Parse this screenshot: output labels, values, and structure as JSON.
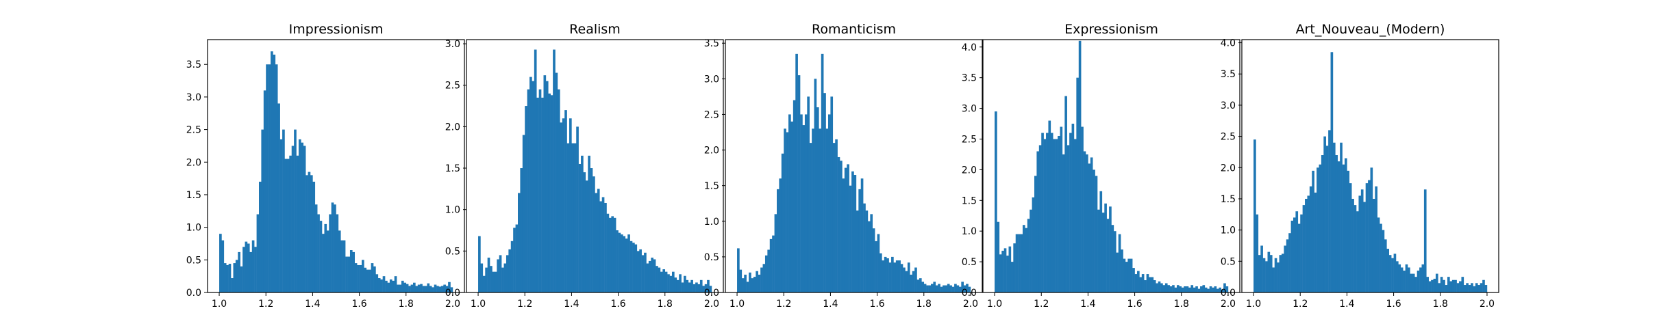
{
  "chart_data": [
    {
      "type": "histogram",
      "title": "Impressionism",
      "bin_range": [
        1.0,
        2.0
      ],
      "bin_count": 100,
      "xlim": [
        0.95,
        2.05
      ],
      "ylim": [
        0,
        3.88
      ],
      "xticks": [
        "1.0",
        "1.2",
        "1.4",
        "1.6",
        "1.8",
        "2.0"
      ],
      "yticks": [
        "0.0",
        "0.5",
        "1.0",
        "1.5",
        "2.0",
        "2.5",
        "3.0",
        "3.5"
      ],
      "bar_color": "#1f77b4",
      "values": [
        0.9,
        0.8,
        0.45,
        0.42,
        0.44,
        0.22,
        0.45,
        0.5,
        0.62,
        0.4,
        0.7,
        0.78,
        0.75,
        0.62,
        0.8,
        0.7,
        1.2,
        1.7,
        2.5,
        3.1,
        3.5,
        3.5,
        3.7,
        3.65,
        3.5,
        2.9,
        2.35,
        2.5,
        2.05,
        2.05,
        2.1,
        2.25,
        2.5,
        2.1,
        2.35,
        2.3,
        2.25,
        1.8,
        1.85,
        1.8,
        1.7,
        1.35,
        1.2,
        1.1,
        0.9,
        1.05,
        0.95,
        1.2,
        1.38,
        1.35,
        1.2,
        0.95,
        0.8,
        0.8,
        0.55,
        0.55,
        0.65,
        0.62,
        0.45,
        0.42,
        0.42,
        0.5,
        0.38,
        0.35,
        0.35,
        0.45,
        0.4,
        0.28,
        0.22,
        0.2,
        0.25,
        0.18,
        0.15,
        0.2,
        0.18,
        0.25,
        0.12,
        0.12,
        0.18,
        0.15,
        0.13,
        0.1,
        0.12,
        0.15,
        0.1,
        0.12,
        0.13,
        0.1,
        0.1,
        0.14,
        0.1,
        0.08,
        0.12,
        0.1,
        0.09,
        0.1,
        0.12,
        0.1,
        0.16,
        0.08
      ]
    },
    {
      "type": "histogram",
      "title": "Realism",
      "bin_range": [
        1.0,
        2.0
      ],
      "bin_count": 100,
      "xlim": [
        0.95,
        2.05
      ],
      "ylim": [
        0,
        3.05
      ],
      "xticks": [
        "1.0",
        "1.2",
        "1.4",
        "1.6",
        "1.8",
        "2.0"
      ],
      "yticks": [
        "0.0",
        "0.5",
        "1.0",
        "1.5",
        "2.0",
        "2.5",
        "3.0"
      ],
      "bar_color": "#1f77b4",
      "values": [
        0.68,
        0.35,
        0.2,
        0.3,
        0.42,
        0.32,
        0.25,
        0.25,
        0.4,
        0.45,
        0.3,
        0.35,
        0.45,
        0.52,
        0.62,
        0.78,
        0.82,
        1.2,
        1.5,
        1.9,
        2.25,
        2.45,
        2.6,
        2.55,
        2.93,
        2.35,
        2.45,
        2.35,
        2.62,
        2.55,
        2.4,
        2.38,
        2.93,
        2.65,
        2.45,
        2.05,
        2.1,
        2.2,
        1.8,
        2.1,
        1.8,
        1.8,
        2.0,
        1.55,
        1.65,
        1.45,
        1.35,
        1.65,
        1.5,
        1.4,
        1.2,
        1.25,
        1.1,
        1.15,
        1.08,
        0.95,
        0.9,
        0.92,
        0.9,
        0.75,
        0.72,
        0.7,
        0.68,
        0.65,
        0.7,
        0.62,
        0.6,
        0.58,
        0.5,
        0.52,
        0.45,
        0.48,
        0.35,
        0.38,
        0.42,
        0.4,
        0.32,
        0.3,
        0.25,
        0.28,
        0.25,
        0.22,
        0.2,
        0.25,
        0.18,
        0.15,
        0.22,
        0.12,
        0.2,
        0.15,
        0.12,
        0.15,
        0.1,
        0.12,
        0.1,
        0.15,
        0.08,
        0.1,
        0.15,
        0.08
      ]
    },
    {
      "type": "histogram",
      "title": "Romanticism",
      "bin_range": [
        1.0,
        2.0
      ],
      "bin_count": 100,
      "xlim": [
        0.95,
        2.05
      ],
      "ylim": [
        0,
        3.55
      ],
      "xticks": [
        "1.0",
        "1.2",
        "1.4",
        "1.6",
        "1.8",
        "2.0"
      ],
      "yticks": [
        "0.0",
        "0.5",
        "1.0",
        "1.5",
        "2.0",
        "2.5",
        "3.0",
        "3.5"
      ],
      "bar_color": "#1f77b4",
      "values": [
        0.62,
        0.32,
        0.2,
        0.25,
        0.15,
        0.28,
        0.2,
        0.22,
        0.3,
        0.25,
        0.35,
        0.4,
        0.52,
        0.6,
        0.75,
        0.8,
        1.1,
        1.45,
        1.6,
        1.95,
        2.3,
        2.25,
        2.5,
        2.4,
        2.7,
        3.35,
        3.05,
        2.5,
        2.35,
        2.5,
        2.75,
        2.1,
        2.3,
        3.0,
        2.6,
        2.3,
        3.35,
        2.8,
        2.3,
        2.5,
        2.75,
        2.1,
        2.15,
        1.9,
        1.85,
        1.6,
        1.75,
        1.8,
        1.5,
        1.7,
        1.65,
        1.15,
        1.45,
        1.6,
        1.25,
        1.15,
        1.0,
        1.1,
        0.9,
        0.72,
        0.82,
        0.55,
        0.45,
        0.5,
        0.48,
        0.42,
        0.5,
        0.42,
        0.45,
        0.45,
        0.4,
        0.35,
        0.3,
        0.42,
        0.25,
        0.3,
        0.35,
        0.18,
        0.2,
        0.15,
        0.12,
        0.1,
        0.1,
        0.12,
        0.15,
        0.1,
        0.12,
        0.08,
        0.1,
        0.1,
        0.12,
        0.1,
        0.08,
        0.12,
        0.1,
        0.08,
        0.15,
        0.1,
        0.12,
        0.08
      ]
    },
    {
      "type": "histogram",
      "title": "Expressionism",
      "bin_range": [
        1.0,
        2.0
      ],
      "bin_count": 100,
      "xlim": [
        0.95,
        2.05
      ],
      "ylim": [
        0,
        4.12
      ],
      "xticks": [
        "1.0",
        "1.2",
        "1.4",
        "1.6",
        "1.8",
        "2.0"
      ],
      "yticks": [
        "0.0",
        "0.5",
        "1.0",
        "1.5",
        "2.0",
        "2.5",
        "3.0",
        "3.5",
        "4.0"
      ],
      "bar_color": "#1f77b4",
      "values": [
        2.95,
        1.15,
        0.62,
        0.68,
        0.72,
        0.6,
        0.75,
        0.5,
        0.8,
        0.95,
        0.95,
        0.95,
        1.1,
        1.05,
        1.2,
        1.35,
        1.55,
        1.9,
        2.3,
        2.4,
        2.6,
        2.5,
        2.6,
        2.8,
        2.6,
        2.5,
        2.5,
        2.55,
        2.7,
        2.25,
        3.2,
        2.4,
        2.6,
        2.75,
        2.5,
        3.5,
        4.1,
        2.7,
        2.3,
        2.25,
        2.1,
        2.2,
        2.0,
        1.9,
        1.35,
        1.65,
        1.3,
        1.45,
        1.2,
        1.4,
        1.1,
        1.0,
        0.65,
        0.95,
        0.7,
        0.55,
        0.5,
        0.55,
        0.55,
        0.4,
        0.3,
        0.35,
        0.25,
        0.3,
        0.2,
        0.3,
        0.25,
        0.25,
        0.2,
        0.15,
        0.18,
        0.15,
        0.12,
        0.15,
        0.12,
        0.1,
        0.12,
        0.08,
        0.12,
        0.1,
        0.08,
        0.1,
        0.1,
        0.08,
        0.12,
        0.08,
        0.1,
        0.06,
        0.1,
        0.12,
        0.08,
        0.06,
        0.1,
        0.08,
        0.1,
        0.06,
        0.08,
        0.05,
        0.15,
        0.1
      ]
    },
    {
      "type": "histogram",
      "title": "Art_Nouveau_(Modern)",
      "bin_range": [
        1.0,
        2.0
      ],
      "bin_count": 100,
      "xlim": [
        0.95,
        2.05
      ],
      "ylim": [
        0,
        4.05
      ],
      "xticks": [
        "1.0",
        "1.2",
        "1.4",
        "1.6",
        "1.8",
        "2.0"
      ],
      "yticks": [
        "0.0",
        "0.5",
        "1.0",
        "1.5",
        "2.0",
        "2.5",
        "3.0",
        "3.5",
        "4.0"
      ],
      "bar_color": "#1f77b4",
      "values": [
        2.45,
        1.25,
        0.6,
        0.75,
        0.55,
        0.5,
        0.65,
        0.6,
        0.4,
        0.55,
        0.48,
        0.6,
        0.62,
        0.75,
        0.85,
        0.95,
        1.15,
        1.2,
        1.3,
        1.1,
        1.25,
        1.4,
        1.5,
        1.55,
        1.7,
        1.95,
        1.6,
        2.0,
        2.05,
        2.2,
        2.5,
        2.35,
        2.6,
        3.85,
        2.4,
        2.2,
        2.1,
        2.4,
        2.05,
        2.15,
        1.95,
        1.75,
        1.5,
        1.4,
        1.3,
        1.55,
        1.65,
        1.45,
        1.75,
        1.8,
        2.0,
        1.5,
        1.7,
        1.2,
        1.1,
        1.0,
        0.85,
        0.7,
        0.6,
        0.55,
        0.62,
        0.5,
        0.45,
        0.4,
        0.35,
        0.45,
        0.4,
        0.3,
        0.3,
        0.25,
        0.35,
        0.4,
        0.45,
        1.65,
        0.25,
        0.18,
        0.2,
        0.22,
        0.3,
        0.15,
        0.25,
        0.2,
        0.12,
        0.25,
        0.18,
        0.2,
        0.2,
        0.15,
        0.18,
        0.25,
        0.12,
        0.15,
        0.12,
        0.15,
        0.1,
        0.15,
        0.12,
        0.15,
        0.2,
        0.12
      ]
    }
  ]
}
